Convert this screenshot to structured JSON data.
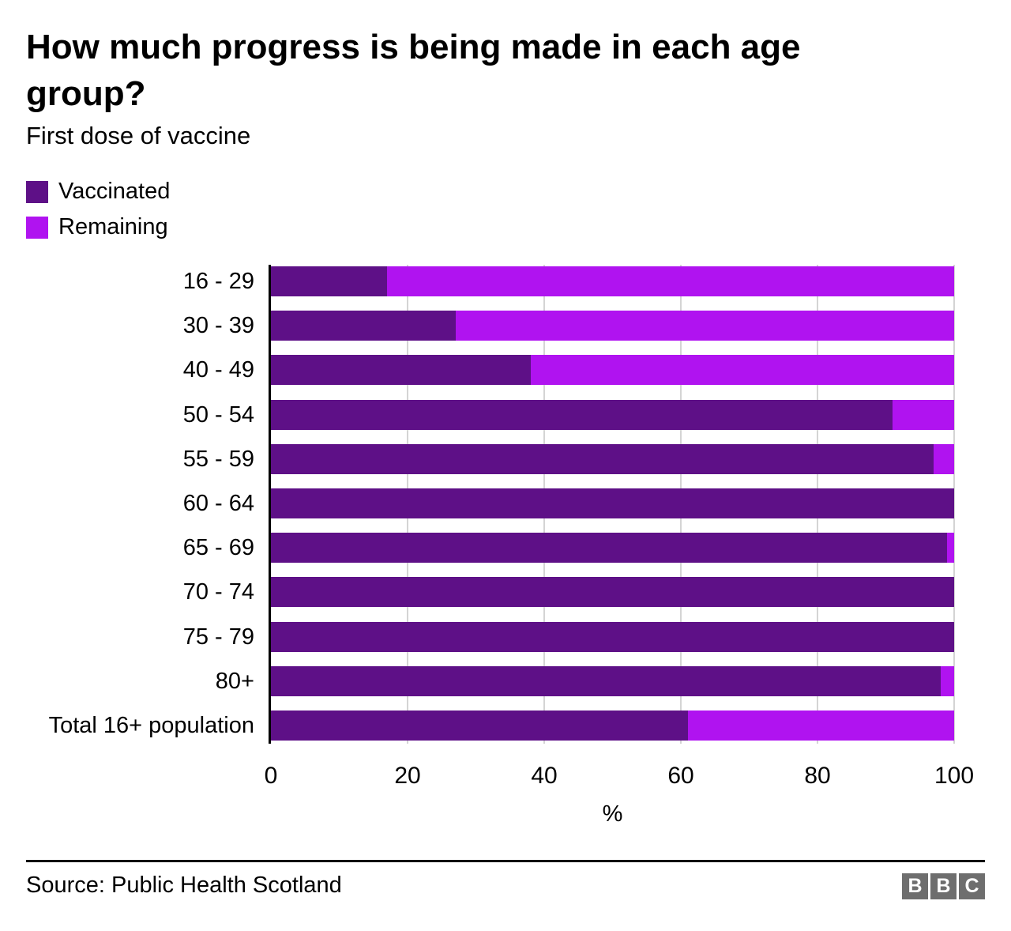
{
  "header": {
    "title": "How much progress is being made in each age group?",
    "subtitle": "First dose of vaccine"
  },
  "legend": [
    {
      "label": "Vaccinated",
      "color": "#5e1087"
    },
    {
      "label": "Remaining",
      "color": "#b013f0"
    }
  ],
  "chart_data": {
    "type": "bar",
    "orientation": "horizontal",
    "stacked": true,
    "title": "How much progress is being made in each age group?",
    "subtitle": "First dose of vaccine",
    "categories": [
      "16 - 29",
      "30 - 39",
      "40 - 49",
      "50 - 54",
      "55 - 59",
      "60 - 64",
      "65 - 69",
      "70 - 74",
      "75 - 79",
      "80+",
      "Total 16+ population"
    ],
    "series": [
      {
        "name": "Vaccinated",
        "color": "#5e1087",
        "values": [
          17,
          27,
          38,
          91,
          97,
          100,
          99,
          100,
          100,
          98,
          61
        ]
      },
      {
        "name": "Remaining",
        "color": "#b013f0",
        "values": [
          83,
          73,
          62,
          9,
          3,
          0,
          1,
          0,
          0,
          2,
          39
        ]
      }
    ],
    "xlabel": "%",
    "xlim": [
      0,
      100
    ],
    "xticks": [
      0,
      20,
      40,
      60,
      80,
      100
    ],
    "grid": "vertical",
    "legend_position": "top-left"
  },
  "footer": {
    "source": "Source: Public Health Scotland",
    "logo_letters": [
      "B",
      "B",
      "C"
    ]
  }
}
